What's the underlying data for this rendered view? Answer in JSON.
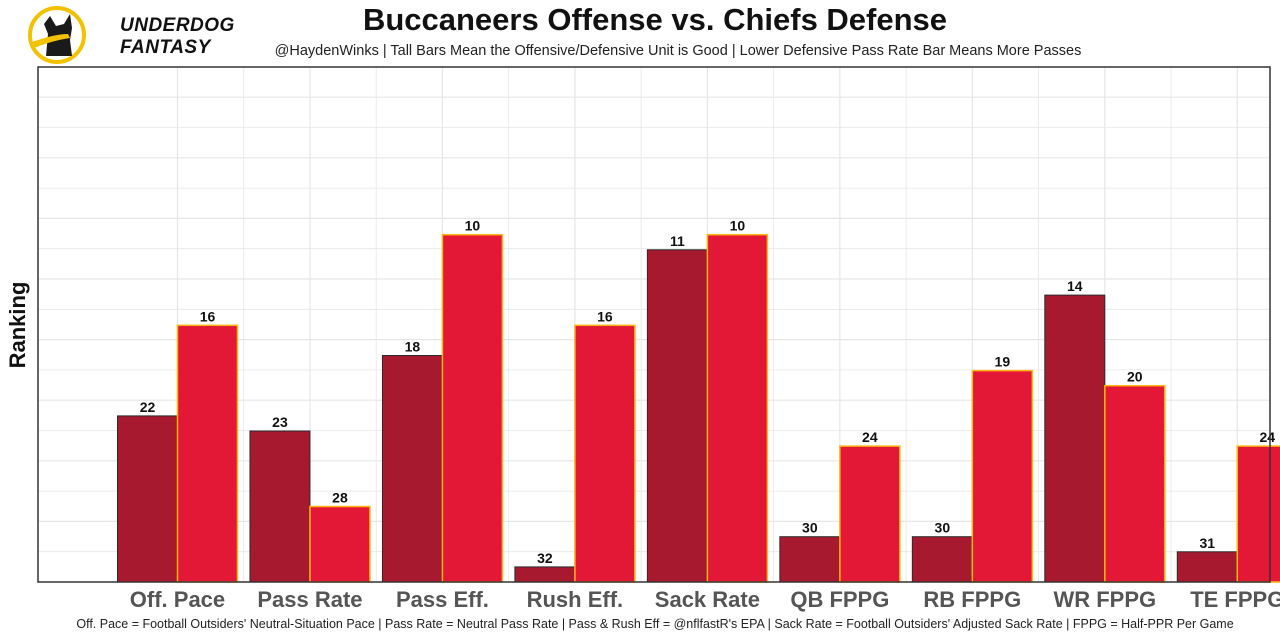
{
  "brand": {
    "line1": "UNDERDOG",
    "line2": "FANTASY"
  },
  "colors": {
    "offense": "#a6192e",
    "defense": "#e31837",
    "defense_outline": "#ffb612",
    "grid": "#e6e6e6",
    "panel_border": "#333333",
    "logo_ring": "#f2c200"
  },
  "chart_data": {
    "type": "bar",
    "title": "Buccaneers Offense vs. Chiefs Defense",
    "subtitle": "@HaydenWinks | Tall Bars Mean the Offensive/Defensive Unit is Good | Lower Defensive Pass Rate Bar Means More Passes",
    "ylabel": "Ranking",
    "xlabel": "",
    "caption": "Off. Pace = Football Outsiders' Neutral-Situation Pace | Pass Rate = Neutral Pass Rate | Pass & Rush Eff = @nflfastR's EPA | Sack Rate = Football Outsiders' Adjusted Sack Rate | FPPG = Half-PPR Per Game",
    "categories": [
      "Off. Pace",
      "Pass Rate",
      "Pass Eff.",
      "Rush Eff.",
      "Sack Rate",
      "QB FPPG",
      "RB FPPG",
      "WR FPPG",
      "TE FPPG"
    ],
    "series": [
      {
        "name": "Buccaneers Offense",
        "values": [
          22,
          23,
          18,
          32,
          11,
          30,
          30,
          14,
          31
        ]
      },
      {
        "name": "Chiefs Defense",
        "values": [
          16,
          28,
          10,
          16,
          10,
          24,
          19,
          20,
          24
        ]
      }
    ],
    "rank_scale": [
      1,
      33
    ],
    "grid": true,
    "legend": "none"
  }
}
